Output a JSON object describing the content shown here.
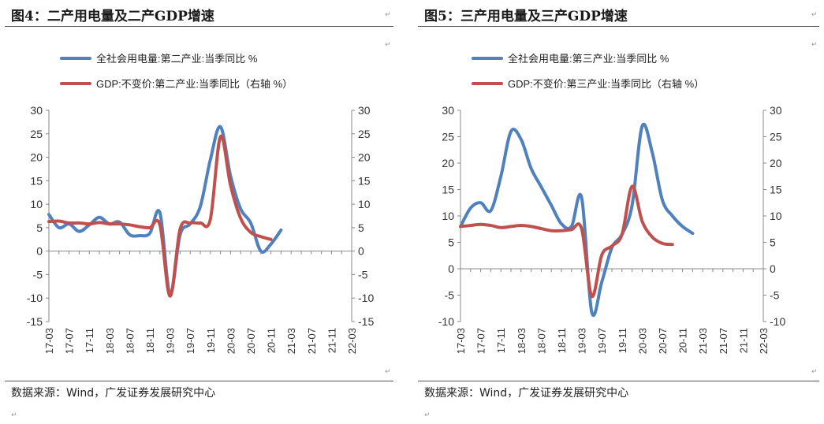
{
  "left": {
    "title": "图4：二产用电量及二产GDP增速",
    "source": "数据来源：Wind，广发证券发展研究中心",
    "chart_data": {
      "type": "line",
      "title": "二产用电量及二产GDP增速",
      "x": [
        "17-03",
        "17-05",
        "17-07",
        "17-09",
        "17-11",
        "18-01",
        "18-03",
        "18-05",
        "18-07",
        "18-09",
        "18-11",
        "19-01",
        "19-03",
        "19-05",
        "19-07",
        "19-09",
        "19-11",
        "20-01",
        "20-03",
        "20-05",
        "20-07",
        "20-09",
        "20-11",
        "21-01",
        "21-03",
        "21-05",
        "21-07",
        "21-09",
        "21-11",
        "22-01",
        "22-03"
      ],
      "xticks": [
        "17-03",
        "17-07",
        "17-11",
        "18-03",
        "18-07",
        "18-11",
        "19-03",
        "19-07",
        "19-11",
        "20-03",
        "20-07",
        "20-11",
        "21-03",
        "21-07",
        "21-11",
        "22-03"
      ],
      "yticks": [
        "30",
        "25",
        "20",
        "15",
        "10",
        "5",
        "0",
        "-5",
        "-10",
        "-15"
      ],
      "ylim": [
        -15,
        30
      ],
      "y2lim": [
        -15,
        30
      ],
      "series": [
        {
          "name": "全社会用电量:第二产业:当季同比 %",
          "color": "#4f81bd",
          "axis": "left",
          "values": [
            7.8,
            5,
            5.8,
            4.2,
            5.6,
            7.2,
            5.8,
            6.2,
            3.5,
            3.3,
            3.8,
            8.2,
            -9.2,
            3.5,
            5.8,
            9.5,
            19.5,
            26.5,
            16,
            9,
            6,
            0,
            1.5,
            4.5,
            null,
            null,
            null,
            null,
            null,
            null,
            null
          ]
        },
        {
          "name": "GDP:不变价:第二产业:当季同比（右轴 %）",
          "color": "#c0504d",
          "axis": "right",
          "values": [
            6.3,
            6.4,
            6,
            6,
            5.8,
            6.1,
            5.8,
            5.8,
            5.6,
            5.2,
            5.0,
            5.6,
            -9.6,
            4.7,
            6,
            6,
            6.8,
            24.4,
            14,
            7,
            4,
            3.1,
            2.5,
            null,
            null,
            null,
            null,
            null,
            null,
            null,
            null
          ]
        }
      ]
    }
  },
  "right": {
    "title": "图5：三产用电量及三产GDP增速",
    "source": "数据来源：Wind，广发证券发展研究中心",
    "chart_data": {
      "type": "line",
      "title": "三产用电量及三产GDP增速",
      "x": [
        "17-03",
        "17-05",
        "17-07",
        "17-09",
        "17-11",
        "18-01",
        "18-03",
        "18-05",
        "18-07",
        "18-09",
        "18-11",
        "19-01",
        "19-03",
        "19-05",
        "19-07",
        "19-09",
        "19-11",
        "20-01",
        "20-03",
        "20-05",
        "20-07",
        "20-09",
        "20-11",
        "21-01",
        "21-03",
        "21-05",
        "21-07",
        "21-09",
        "21-11",
        "22-01",
        "22-03"
      ],
      "xticks": [
        "17-03",
        "17-07",
        "17-11",
        "18-03",
        "18-07",
        "18-11",
        "19-03",
        "19-07",
        "19-11",
        "20-03",
        "20-07",
        "20-11",
        "21-03",
        "21-07",
        "21-11",
        "22-03"
      ],
      "yticks": [
        "30",
        "25",
        "20",
        "15",
        "10",
        "5",
        "0",
        "-5",
        "-10"
      ],
      "ylim": [
        -10,
        30
      ],
      "y2lim": [
        -10,
        30
      ],
      "series": [
        {
          "name": "全社会用电量:第三产业:当季同比 %",
          "color": "#4f81bd",
          "axis": "left",
          "values": [
            8,
            11.5,
            12.5,
            11,
            17.5,
            26,
            24.5,
            19,
            15.5,
            12,
            8.5,
            8,
            13.5,
            -8.2,
            -2.5,
            4,
            6.5,
            12,
            27,
            22,
            13,
            10,
            8,
            6.7,
            null,
            null,
            null,
            null,
            null,
            null,
            null
          ]
        },
        {
          "name": "GDP:不变价:第三产业:当季同比（右轴 %）",
          "color": "#c0504d",
          "axis": "right",
          "values": [
            8,
            8.2,
            8.4,
            8.2,
            7.8,
            8,
            8.2,
            8,
            7.6,
            7.2,
            7.2,
            7.4,
            7.6,
            -5.2,
            2.6,
            4.3,
            6.5,
            15.6,
            9,
            6,
            4.8,
            4.6,
            null,
            null,
            null,
            null,
            null,
            null,
            null,
            null,
            null
          ]
        }
      ]
    }
  }
}
